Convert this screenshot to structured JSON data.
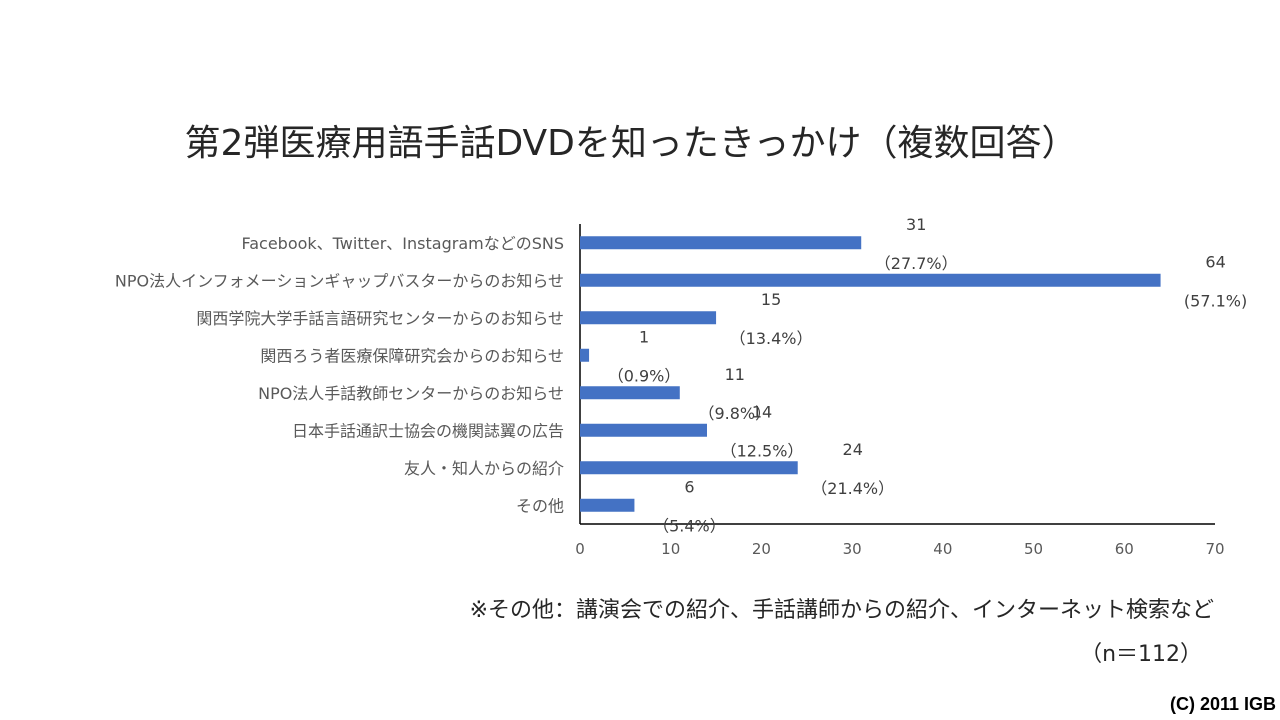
{
  "chart_data": {
    "type": "bar",
    "orientation": "horizontal",
    "title": "第2弾医療用語手話DVDを知ったきっかけ（複数回答）",
    "categories": [
      "Facebook、Twitter、InstagramなどのSNS",
      "NPO法人インフォメーションギャップバスターからのお知らせ",
      "関西学院大学手話言語研究センターからのお知らせ",
      "関西ろう者医療保障研究会からのお知らせ",
      "NPO法人手話教師センターからのお知らせ",
      "日本手話通訳士協会の機関誌翼の広告",
      "友人・知人からの紹介",
      "その他"
    ],
    "values": [
      31,
      64,
      15,
      1,
      11,
      14,
      24,
      6
    ],
    "percent_labels": [
      "（27.7%）",
      "(57.1%)",
      "（13.4%）",
      "（0.9%）",
      "（9.8%）",
      "（12.5%）",
      "（21.4%）",
      "（5.4%）"
    ],
    "xlim": [
      0,
      70
    ],
    "x_ticks": [
      "0",
      "10",
      "20",
      "30",
      "40",
      "50",
      "60",
      "70"
    ],
    "bar_color": "#4472C4",
    "grid": false
  },
  "note": "※その他：講演会での紹介、手話講師からの紹介、インターネット検索など",
  "sample_size": "（n＝112）",
  "copyright": "(C) 2011 IGB"
}
